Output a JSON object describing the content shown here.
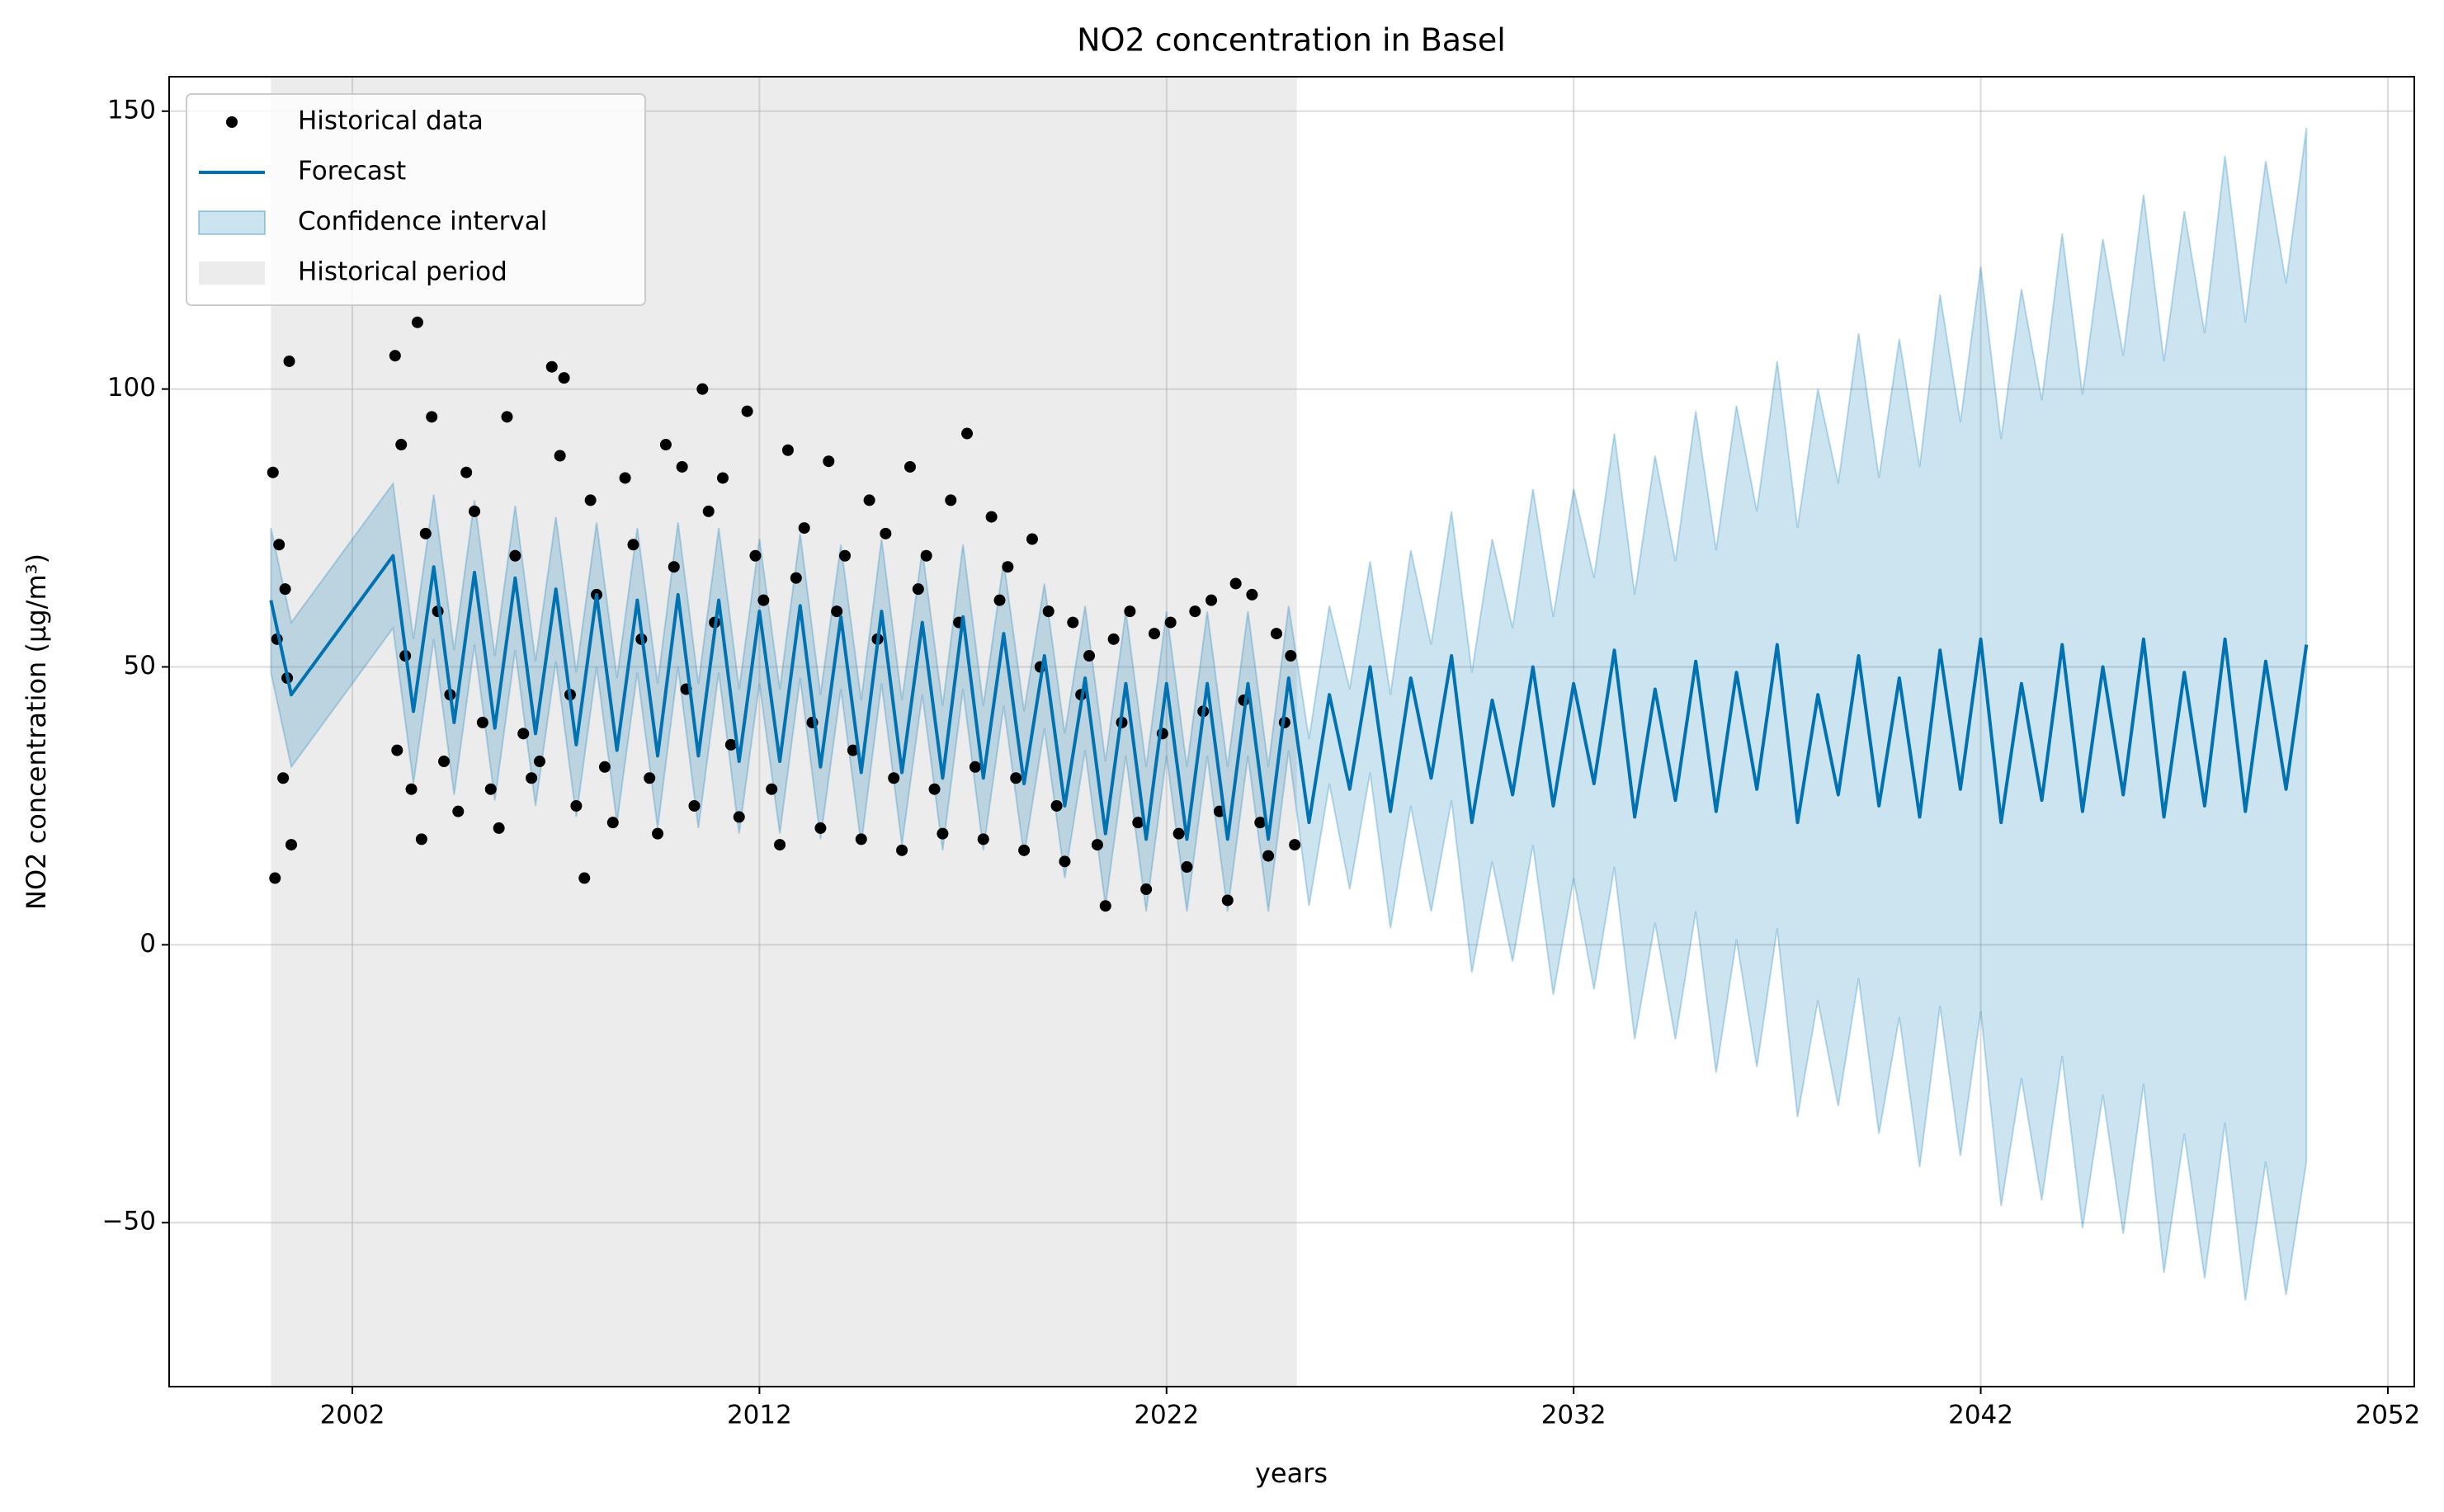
{
  "chart_data": {
    "type": "line",
    "title": "NO2 concentration in Basel",
    "xlabel": "years",
    "ylabel": "NO2 concentration (µg/m³)",
    "xlim": [
      1997.5,
      2052.65
    ],
    "ylim": [
      -79.5,
      156.2
    ],
    "xticks": [
      2002,
      2012,
      2022,
      2032,
      2042,
      2052
    ],
    "yticks": [
      {
        "value": -50,
        "label": "−50"
      },
      0,
      50,
      100,
      150
    ],
    "grid": true,
    "legend": "upper left",
    "x": [
      2000,
      2000.5,
      2003,
      2003.5,
      2004,
      2004.5,
      2005,
      2005.5,
      2006,
      2006.5,
      2007,
      2007.5,
      2008,
      2008.5,
      2009,
      2009.5,
      2010,
      2010.5,
      2011,
      2011.5,
      2012,
      2012.5,
      2013,
      2013.5,
      2014,
      2014.5,
      2015,
      2015.5,
      2016,
      2016.5,
      2017,
      2017.5,
      2018,
      2018.5,
      2019,
      2019.5,
      2020,
      2020.5,
      2021,
      2021.5,
      2022,
      2022.5,
      2023,
      2023.5,
      2024,
      2024.5,
      2025,
      2025.5,
      2026,
      2026.5,
      2027,
      2027.5,
      2028,
      2028.5,
      2029,
      2029.5,
      2030,
      2030.5,
      2031,
      2031.5,
      2032,
      2032.5,
      2033,
      2033.5,
      2034,
      2034.5,
      2035,
      2035.5,
      2036,
      2036.5,
      2037,
      2037.5,
      2038,
      2038.5,
      2039,
      2039.5,
      2040,
      2040.5,
      2041,
      2041.5,
      2042,
      2042.5,
      2043,
      2043.5,
      2044,
      2044.5,
      2045,
      2045.5,
      2046,
      2046.5,
      2047,
      2047.5,
      2048,
      2048.5,
      2049,
      2049.5,
      2050
    ],
    "series": [
      {
        "name": "Forecast",
        "color": "#0072b2",
        "values": [
          62,
          45,
          70,
          42,
          68,
          40,
          67,
          39,
          66,
          38,
          64,
          36,
          63,
          35,
          62,
          34,
          63,
          34,
          62,
          33,
          60,
          33,
          61,
          32,
          59,
          31,
          60,
          31,
          58,
          30,
          59,
          30,
          56,
          29,
          52,
          25,
          48,
          20,
          47,
          19,
          47,
          19,
          47,
          19,
          47,
          19,
          48,
          22,
          45,
          28,
          50,
          24,
          48,
          30,
          52,
          22,
          44,
          27,
          50,
          25,
          47,
          29,
          53,
          23,
          46,
          26,
          51,
          24,
          49,
          28,
          54,
          22,
          45,
          27,
          52,
          25,
          48,
          23,
          53,
          28,
          55,
          22,
          47,
          26,
          54,
          24,
          50,
          27,
          55,
          23,
          49,
          25,
          55,
          24,
          51,
          28,
          54
        ]
      }
    ],
    "band": {
      "name": "Confidence interval",
      "color": "#0072b2",
      "lower": [
        49,
        32,
        57,
        29,
        55,
        27,
        54,
        26,
        53,
        25,
        51,
        23,
        50,
        22,
        49,
        21,
        50,
        21,
        49,
        20,
        47,
        20,
        48,
        19,
        46,
        18,
        47,
        18,
        45,
        17,
        46,
        17,
        43,
        16,
        39,
        12,
        35,
        7,
        34,
        6,
        34,
        6,
        34,
        6,
        34,
        6,
        35,
        7,
        29,
        10,
        31,
        3,
        25,
        6,
        26,
        -5,
        15,
        -3,
        18,
        -9,
        12,
        -8,
        14,
        -17,
        4,
        -17,
        6,
        -23,
        1,
        -22,
        3,
        -31,
        -10,
        -29,
        -6,
        -34,
        -13,
        -40,
        -11,
        -38,
        -12,
        -47,
        -24,
        -46,
        -20,
        -51,
        -27,
        -52,
        -25,
        -59,
        -34,
        -60,
        -32,
        -64,
        -39,
        -63,
        -39
      ],
      "upper": [
        75,
        58,
        83,
        55,
        81,
        53,
        80,
        52,
        79,
        51,
        77,
        49,
        76,
        48,
        75,
        47,
        76,
        47,
        75,
        46,
        73,
        46,
        74,
        45,
        72,
        44,
        73,
        44,
        71,
        43,
        72,
        43,
        69,
        42,
        65,
        38,
        61,
        33,
        60,
        32,
        60,
        32,
        60,
        32,
        60,
        32,
        61,
        37,
        61,
        46,
        69,
        45,
        71,
        54,
        78,
        49,
        73,
        57,
        82,
        59,
        82,
        66,
        92,
        63,
        88,
        69,
        96,
        71,
        97,
        78,
        105,
        75,
        100,
        83,
        110,
        84,
        109,
        86,
        117,
        94,
        122,
        91,
        118,
        98,
        128,
        99,
        127,
        106,
        135,
        105,
        132,
        110,
        142,
        112,
        141,
        119,
        147
      ]
    },
    "scatter": {
      "name": "Historical data",
      "color": "#000000",
      "x": [
        2000.05,
        2000.1,
        2000.15,
        2000.2,
        2000.3,
        2000.35,
        2000.45,
        2000.5,
        2000.4,
        2003.05,
        2003.1,
        2003.2,
        2003.3,
        2003.45,
        2003.6,
        2003.7,
        2003.8,
        2003.95,
        2004.1,
        2004.25,
        2004.4,
        2004.6,
        2004.8,
        2005.0,
        2005.2,
        2005.4,
        2005.6,
        2005.8,
        2006.0,
        2006.2,
        2006.4,
        2006.6,
        2006.9,
        2007.1,
        2007.2,
        2007.35,
        2007.5,
        2007.7,
        2007.85,
        2008.0,
        2008.2,
        2008.4,
        2008.7,
        2008.9,
        2009.1,
        2009.3,
        2009.5,
        2009.7,
        2009.9,
        2010.1,
        2010.2,
        2010.4,
        2010.6,
        2010.75,
        2010.9,
        2011.1,
        2011.3,
        2011.5,
        2011.7,
        2011.9,
        2012.1,
        2012.3,
        2012.5,
        2012.7,
        2012.9,
        2013.1,
        2013.3,
        2013.5,
        2013.7,
        2013.9,
        2014.1,
        2014.3,
        2014.5,
        2014.7,
        2014.9,
        2015.1,
        2015.3,
        2015.5,
        2015.7,
        2015.9,
        2016.1,
        2016.3,
        2016.5,
        2016.7,
        2016.9,
        2017.1,
        2017.3,
        2017.5,
        2017.7,
        2017.9,
        2018.1,
        2018.3,
        2018.5,
        2018.7,
        2018.9,
        2019.1,
        2019.3,
        2019.5,
        2019.7,
        2019.9,
        2020.1,
        2020.3,
        2020.5,
        2020.7,
        2020.9,
        2021.1,
        2021.3,
        2021.5,
        2021.7,
        2021.9,
        2022.1,
        2022.3,
        2022.5,
        2022.7,
        2022.9,
        2023.1,
        2023.3,
        2023.5,
        2023.7,
        2023.9,
        2024.1,
        2024.3,
        2024.5,
        2024.7,
        2024.9,
        2025.05,
        2025.15
      ],
      "values": [
        85,
        12,
        55,
        72,
        30,
        64,
        105,
        18,
        48,
        106,
        35,
        90,
        52,
        28,
        112,
        19,
        74,
        95,
        60,
        33,
        45,
        24,
        85,
        78,
        40,
        28,
        21,
        95,
        70,
        38,
        30,
        33,
        104,
        88,
        102,
        45,
        25,
        12,
        80,
        63,
        32,
        22,
        84,
        72,
        55,
        30,
        20,
        90,
        68,
        86,
        46,
        25,
        100,
        78,
        58,
        84,
        36,
        23,
        96,
        70,
        62,
        28,
        18,
        89,
        66,
        75,
        40,
        21,
        87,
        60,
        70,
        35,
        19,
        80,
        55,
        74,
        30,
        17,
        86,
        64,
        70,
        28,
        20,
        80,
        58,
        92,
        32,
        19,
        77,
        62,
        68,
        30,
        17,
        73,
        50,
        60,
        25,
        15,
        58,
        45,
        52,
        18,
        7,
        55,
        40,
        60,
        22,
        10,
        56,
        38,
        58,
        20,
        14,
        60,
        42,
        62,
        24,
        8,
        65,
        44,
        63,
        22,
        16,
        56,
        40,
        52,
        18
      ]
    },
    "span": {
      "name": "Historical period",
      "color": "#d9d9d9",
      "range": [
        2000.0,
        2025.2
      ]
    }
  }
}
